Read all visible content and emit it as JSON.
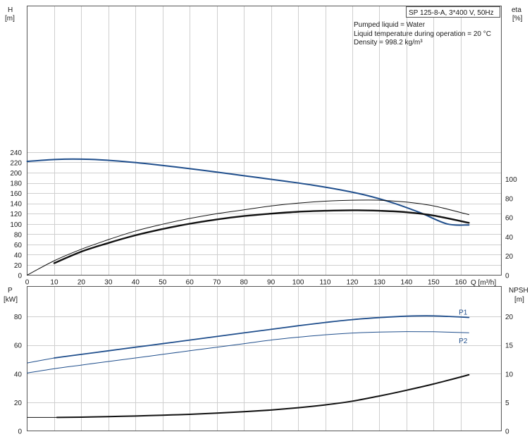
{
  "chart_data": [
    {
      "type": "line",
      "panel": "upper",
      "model_label": "SP 125-8-A, 3*400 V, 50Hz",
      "info_lines": [
        "Pumped liquid = Water",
        "Liquid temperature during operation = 20 °C",
        "Density = 998.2 kg/m³"
      ],
      "xlabel": "Q [m³/h]",
      "ylabel_left": [
        "H",
        "[m]"
      ],
      "ylabel_right": [
        "eta",
        "[%]"
      ],
      "xlim": [
        0,
        175
      ],
      "xticks": [
        0,
        10,
        20,
        30,
        40,
        50,
        60,
        70,
        80,
        90,
        100,
        110,
        120,
        130,
        140,
        150,
        160
      ],
      "ylim_left": [
        0,
        260
      ],
      "yticks_left": [
        0,
        20,
        40,
        60,
        80,
        100,
        120,
        140,
        160,
        180,
        200,
        220,
        240
      ],
      "yticks_right": [
        0,
        20,
        40,
        60,
        80,
        100
      ],
      "grid": true,
      "series": [
        {
          "axis": "left",
          "color": "#1f4e8c",
          "width": 2,
          "x": [
            0,
            10,
            17,
            25,
            35,
            45,
            55,
            65,
            75,
            85,
            95,
            105,
            115,
            125,
            135,
            145,
            155,
            163
          ],
          "y": [
            222,
            225.5,
            226.5,
            225.5,
            222,
            217,
            211,
            204.5,
            197.5,
            190.5,
            183.5,
            176,
            167,
            156,
            141,
            122,
            100,
            98
          ]
        },
        {
          "axis": "right",
          "color": "#111111",
          "width": 1,
          "x": [
            0,
            10,
            20,
            30,
            40,
            50,
            60,
            70,
            80,
            90,
            100,
            110,
            120,
            130,
            140,
            150,
            163
          ],
          "y": [
            0,
            15,
            27,
            37,
            46,
            53,
            59,
            64,
            68,
            72,
            75,
            77,
            78,
            78,
            76,
            72,
            63
          ]
        },
        {
          "axis": "right",
          "color": "#111111",
          "width": 2.4,
          "x": [
            10,
            20,
            30,
            40,
            50,
            60,
            70,
            80,
            90,
            100,
            110,
            120,
            130,
            140,
            150,
            163
          ],
          "y": [
            12.5,
            24.5,
            33.5,
            41.5,
            48,
            53.5,
            58,
            61.5,
            64,
            66,
            67,
            67.5,
            67,
            65.5,
            62,
            54.5
          ]
        }
      ]
    },
    {
      "type": "line",
      "panel": "lower",
      "ylabel_left": [
        "P",
        "[kW]"
      ],
      "ylabel_right": [
        "NPSH",
        "[m]"
      ],
      "ylim_left": [
        0,
        85
      ],
      "yticks_left": [
        0,
        20,
        40,
        60,
        80
      ],
      "ylim_right": [
        0,
        21.25
      ],
      "yticks_right": [
        0,
        5,
        10,
        15,
        20
      ],
      "grid": true,
      "series": [
        {
          "name": "P1",
          "axis": "left",
          "color": "#1f4e8c",
          "width": 1.8,
          "thin_from_zero": true,
          "x": [
            0,
            10,
            20,
            30,
            40,
            50,
            60,
            70,
            80,
            90,
            100,
            110,
            120,
            130,
            140,
            150,
            163
          ],
          "y": [
            47.5,
            51,
            53.5,
            56,
            58.5,
            61,
            63.5,
            66,
            68.5,
            71,
            73.5,
            75.8,
            77.8,
            79.2,
            80.2,
            80.4,
            79.3
          ]
        },
        {
          "name": "P2",
          "axis": "left",
          "color": "#1f4e8c",
          "width": 1,
          "x": [
            0,
            10,
            20,
            30,
            40,
            50,
            60,
            70,
            80,
            90,
            100,
            110,
            120,
            130,
            140,
            150,
            163
          ],
          "y": [
            40.5,
            43.5,
            46,
            48.5,
            51,
            53.5,
            56,
            58.5,
            61,
            63.5,
            65.5,
            67.2,
            68.4,
            69.1,
            69.4,
            69.3,
            68.6
          ]
        },
        {
          "axis": "right",
          "color": "#111111",
          "width": 2,
          "thin_from_zero": true,
          "x": [
            0,
            11,
            20,
            30,
            40,
            50,
            60,
            70,
            80,
            90,
            100,
            110,
            120,
            130,
            140,
            150,
            163
          ],
          "y": [
            2.35,
            2.35,
            2.4,
            2.5,
            2.6,
            2.75,
            2.9,
            3.1,
            3.35,
            3.65,
            4.05,
            4.55,
            5.2,
            6.1,
            7.1,
            8.2,
            9.8
          ]
        }
      ]
    }
  ]
}
